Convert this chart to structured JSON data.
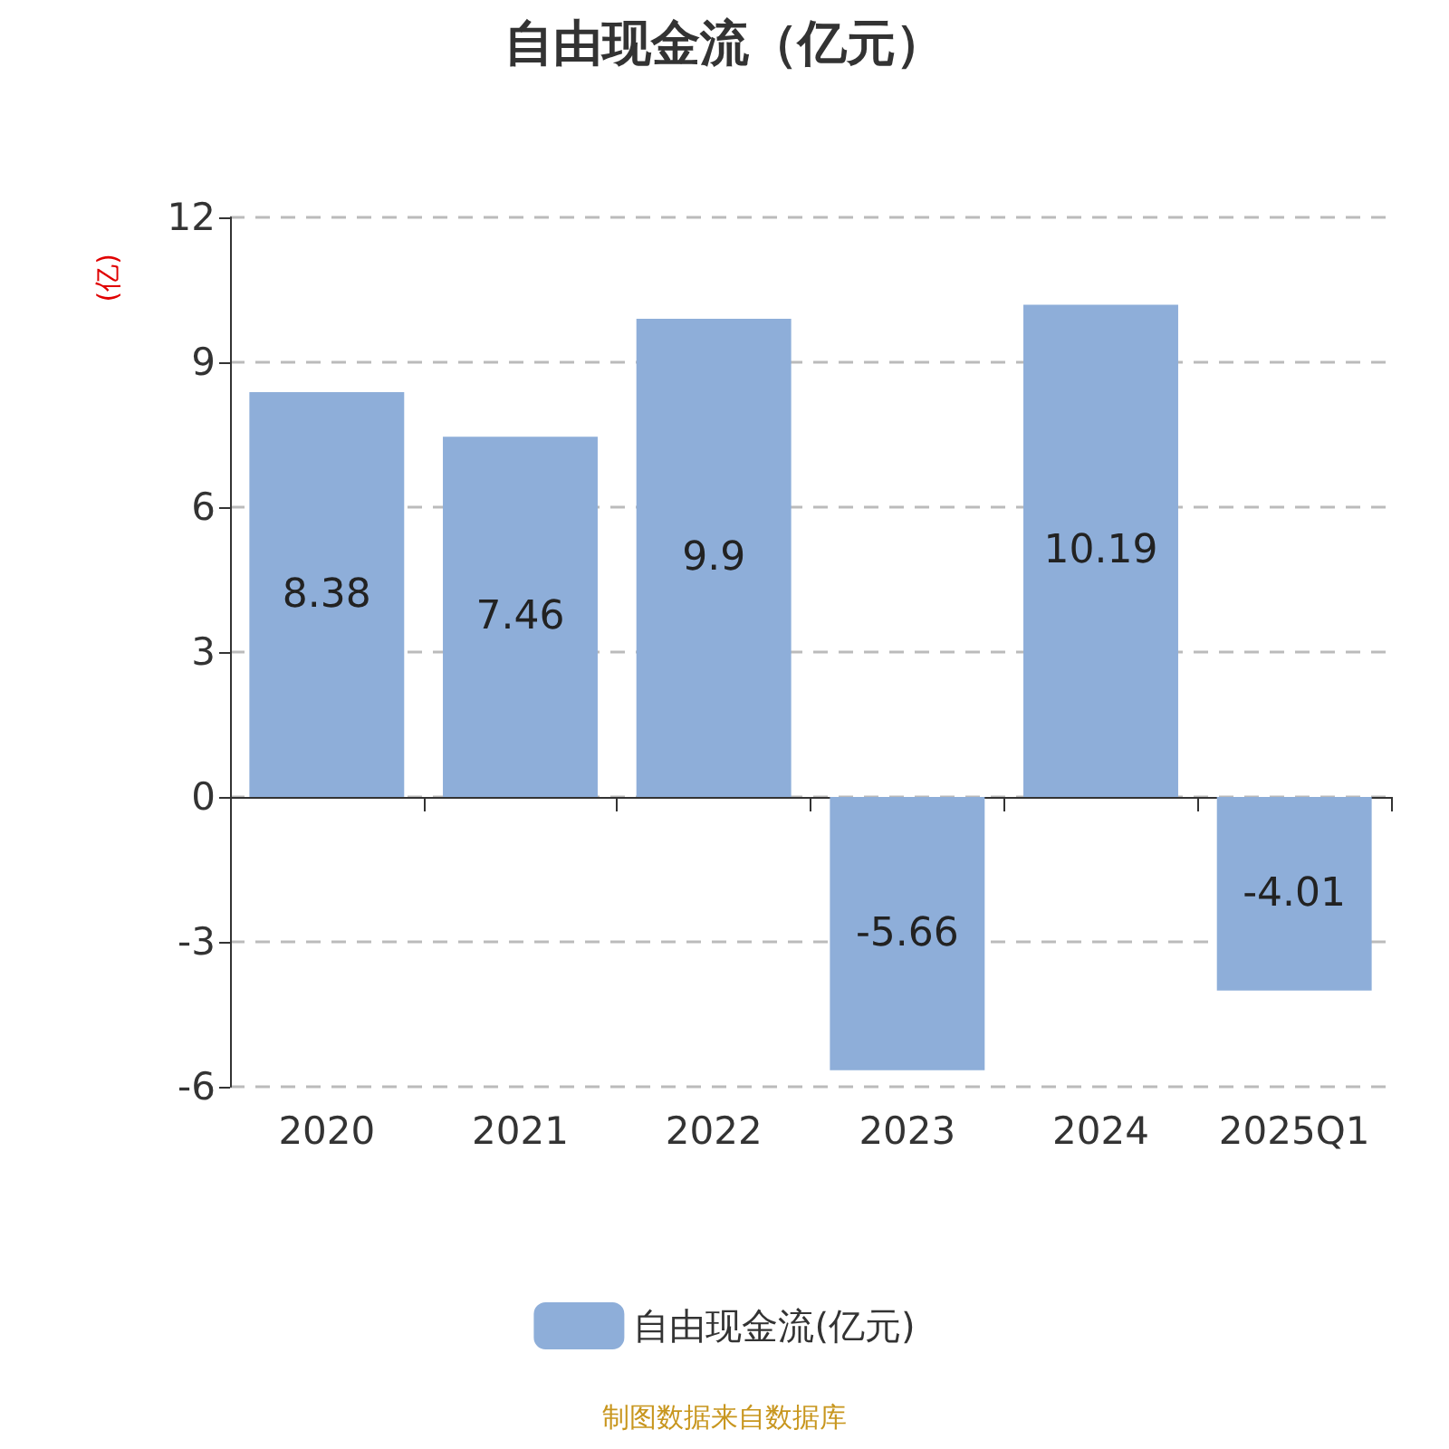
{
  "chart_data": {
    "type": "bar",
    "title": "自由现金流（亿元）",
    "ylabel": "(亿)",
    "categories": [
      "2020",
      "2021",
      "2022",
      "2023",
      "2024",
      "2025Q1"
    ],
    "series": [
      {
        "name": "自由现金流(亿元)",
        "color": "#8eaed9",
        "values": [
          8.38,
          7.46,
          9.9,
          -5.66,
          10.19,
          -4.01
        ]
      }
    ],
    "ylim": [
      -6,
      12
    ],
    "yticks": [
      -6,
      -3,
      0,
      3,
      6,
      9,
      12
    ],
    "grid": "y",
    "legend": "bottom",
    "data_labels": true,
    "annotations": [
      "制图数据来自数据库"
    ]
  }
}
